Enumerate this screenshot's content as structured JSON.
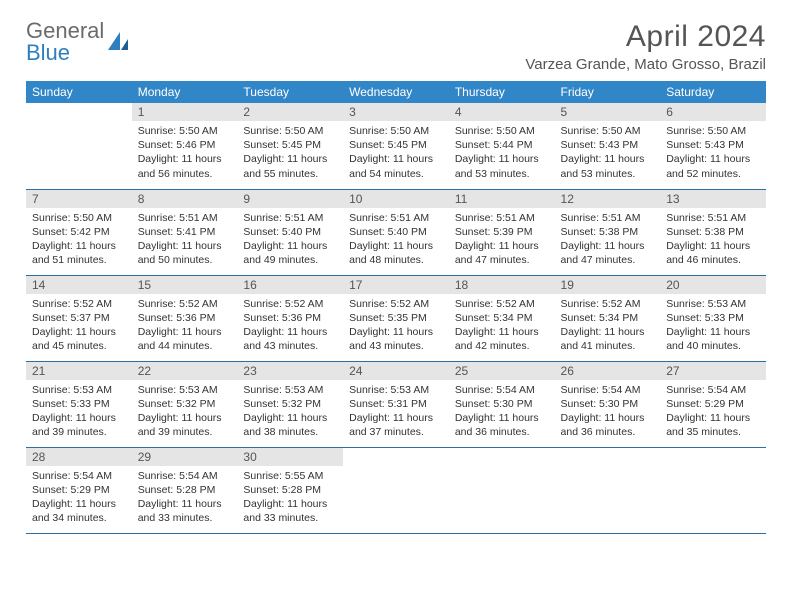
{
  "brand": {
    "part1": "General",
    "part2": "Blue"
  },
  "title": "April 2024",
  "location": "Varzea Grande, Mato Grosso, Brazil",
  "colors": {
    "header_bg": "#3186c8",
    "header_text": "#ffffff",
    "daynum_bg": "#e5e5e5",
    "row_border": "#2b6fa3",
    "logo_gray": "#6b6b6b",
    "logo_blue": "#2f7fbf"
  },
  "weekdays": [
    "Sunday",
    "Monday",
    "Tuesday",
    "Wednesday",
    "Thursday",
    "Friday",
    "Saturday"
  ],
  "weeks": [
    [
      null,
      {
        "n": "1",
        "sr": "Sunrise: 5:50 AM",
        "ss": "Sunset: 5:46 PM",
        "d1": "Daylight: 11 hours",
        "d2": "and 56 minutes."
      },
      {
        "n": "2",
        "sr": "Sunrise: 5:50 AM",
        "ss": "Sunset: 5:45 PM",
        "d1": "Daylight: 11 hours",
        "d2": "and 55 minutes."
      },
      {
        "n": "3",
        "sr": "Sunrise: 5:50 AM",
        "ss": "Sunset: 5:45 PM",
        "d1": "Daylight: 11 hours",
        "d2": "and 54 minutes."
      },
      {
        "n": "4",
        "sr": "Sunrise: 5:50 AM",
        "ss": "Sunset: 5:44 PM",
        "d1": "Daylight: 11 hours",
        "d2": "and 53 minutes."
      },
      {
        "n": "5",
        "sr": "Sunrise: 5:50 AM",
        "ss": "Sunset: 5:43 PM",
        "d1": "Daylight: 11 hours",
        "d2": "and 53 minutes."
      },
      {
        "n": "6",
        "sr": "Sunrise: 5:50 AM",
        "ss": "Sunset: 5:43 PM",
        "d1": "Daylight: 11 hours",
        "d2": "and 52 minutes."
      }
    ],
    [
      {
        "n": "7",
        "sr": "Sunrise: 5:50 AM",
        "ss": "Sunset: 5:42 PM",
        "d1": "Daylight: 11 hours",
        "d2": "and 51 minutes."
      },
      {
        "n": "8",
        "sr": "Sunrise: 5:51 AM",
        "ss": "Sunset: 5:41 PM",
        "d1": "Daylight: 11 hours",
        "d2": "and 50 minutes."
      },
      {
        "n": "9",
        "sr": "Sunrise: 5:51 AM",
        "ss": "Sunset: 5:40 PM",
        "d1": "Daylight: 11 hours",
        "d2": "and 49 minutes."
      },
      {
        "n": "10",
        "sr": "Sunrise: 5:51 AM",
        "ss": "Sunset: 5:40 PM",
        "d1": "Daylight: 11 hours",
        "d2": "and 48 minutes."
      },
      {
        "n": "11",
        "sr": "Sunrise: 5:51 AM",
        "ss": "Sunset: 5:39 PM",
        "d1": "Daylight: 11 hours",
        "d2": "and 47 minutes."
      },
      {
        "n": "12",
        "sr": "Sunrise: 5:51 AM",
        "ss": "Sunset: 5:38 PM",
        "d1": "Daylight: 11 hours",
        "d2": "and 47 minutes."
      },
      {
        "n": "13",
        "sr": "Sunrise: 5:51 AM",
        "ss": "Sunset: 5:38 PM",
        "d1": "Daylight: 11 hours",
        "d2": "and 46 minutes."
      }
    ],
    [
      {
        "n": "14",
        "sr": "Sunrise: 5:52 AM",
        "ss": "Sunset: 5:37 PM",
        "d1": "Daylight: 11 hours",
        "d2": "and 45 minutes."
      },
      {
        "n": "15",
        "sr": "Sunrise: 5:52 AM",
        "ss": "Sunset: 5:36 PM",
        "d1": "Daylight: 11 hours",
        "d2": "and 44 minutes."
      },
      {
        "n": "16",
        "sr": "Sunrise: 5:52 AM",
        "ss": "Sunset: 5:36 PM",
        "d1": "Daylight: 11 hours",
        "d2": "and 43 minutes."
      },
      {
        "n": "17",
        "sr": "Sunrise: 5:52 AM",
        "ss": "Sunset: 5:35 PM",
        "d1": "Daylight: 11 hours",
        "d2": "and 43 minutes."
      },
      {
        "n": "18",
        "sr": "Sunrise: 5:52 AM",
        "ss": "Sunset: 5:34 PM",
        "d1": "Daylight: 11 hours",
        "d2": "and 42 minutes."
      },
      {
        "n": "19",
        "sr": "Sunrise: 5:52 AM",
        "ss": "Sunset: 5:34 PM",
        "d1": "Daylight: 11 hours",
        "d2": "and 41 minutes."
      },
      {
        "n": "20",
        "sr": "Sunrise: 5:53 AM",
        "ss": "Sunset: 5:33 PM",
        "d1": "Daylight: 11 hours",
        "d2": "and 40 minutes."
      }
    ],
    [
      {
        "n": "21",
        "sr": "Sunrise: 5:53 AM",
        "ss": "Sunset: 5:33 PM",
        "d1": "Daylight: 11 hours",
        "d2": "and 39 minutes."
      },
      {
        "n": "22",
        "sr": "Sunrise: 5:53 AM",
        "ss": "Sunset: 5:32 PM",
        "d1": "Daylight: 11 hours",
        "d2": "and 39 minutes."
      },
      {
        "n": "23",
        "sr": "Sunrise: 5:53 AM",
        "ss": "Sunset: 5:32 PM",
        "d1": "Daylight: 11 hours",
        "d2": "and 38 minutes."
      },
      {
        "n": "24",
        "sr": "Sunrise: 5:53 AM",
        "ss": "Sunset: 5:31 PM",
        "d1": "Daylight: 11 hours",
        "d2": "and 37 minutes."
      },
      {
        "n": "25",
        "sr": "Sunrise: 5:54 AM",
        "ss": "Sunset: 5:30 PM",
        "d1": "Daylight: 11 hours",
        "d2": "and 36 minutes."
      },
      {
        "n": "26",
        "sr": "Sunrise: 5:54 AM",
        "ss": "Sunset: 5:30 PM",
        "d1": "Daylight: 11 hours",
        "d2": "and 36 minutes."
      },
      {
        "n": "27",
        "sr": "Sunrise: 5:54 AM",
        "ss": "Sunset: 5:29 PM",
        "d1": "Daylight: 11 hours",
        "d2": "and 35 minutes."
      }
    ],
    [
      {
        "n": "28",
        "sr": "Sunrise: 5:54 AM",
        "ss": "Sunset: 5:29 PM",
        "d1": "Daylight: 11 hours",
        "d2": "and 34 minutes."
      },
      {
        "n": "29",
        "sr": "Sunrise: 5:54 AM",
        "ss": "Sunset: 5:28 PM",
        "d1": "Daylight: 11 hours",
        "d2": "and 33 minutes."
      },
      {
        "n": "30",
        "sr": "Sunrise: 5:55 AM",
        "ss": "Sunset: 5:28 PM",
        "d1": "Daylight: 11 hours",
        "d2": "and 33 minutes."
      },
      null,
      null,
      null,
      null
    ]
  ]
}
